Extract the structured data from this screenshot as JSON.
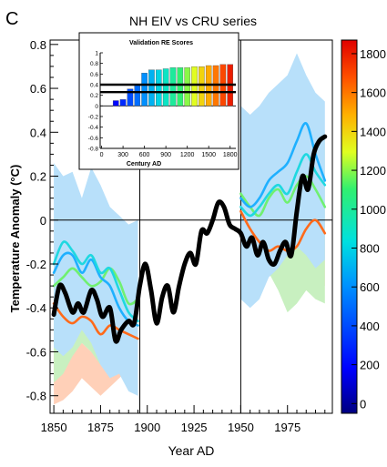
{
  "panel_letter": "C",
  "chart_data": {
    "type": "line",
    "title": "NH EIV vs CRU series",
    "xlabel": "Year AD",
    "ylabel": "Temperature Anomaly (°C)",
    "xlim": [
      1848,
      1999
    ],
    "ylim": [
      -0.88,
      0.82
    ],
    "x_ticks": [
      1850,
      1875,
      1900,
      1925,
      1950,
      1975
    ],
    "x_tick_labels": [
      "1850",
      "1875",
      "1900",
      "1925",
      "1950",
      "1975"
    ],
    "y_ticks": [
      -0.8,
      -0.6,
      -0.4,
      -0.2,
      0,
      0.2,
      0.4,
      0.6,
      0.8
    ],
    "y_tick_labels": [
      "-0.8",
      "-0.6",
      "-0.4",
      "-0.2",
      "0",
      "0.2",
      "0.4",
      "0.6",
      "0.8"
    ],
    "reference_lines": {
      "y": 0,
      "x": [
        1896,
        1950
      ]
    },
    "colorbar": {
      "ticks": [
        0,
        200,
        400,
        600,
        800,
        1000,
        1200,
        1400,
        1600,
        1800
      ],
      "tick_labels": [
        "0",
        "200",
        "400",
        "600",
        "800",
        "1000",
        "1200",
        "1400",
        "1600",
        "1800"
      ],
      "range": [
        -50,
        1870
      ]
    },
    "bands": [
      {
        "color": "#ffd0b8",
        "x": [
          1850,
          1855,
          1860,
          1865,
          1870,
          1875,
          1880,
          1885,
          1890,
          1895
        ],
        "upper": [
          -0.6,
          -0.56,
          -0.52,
          -0.56,
          -0.6,
          -0.58,
          -0.52,
          -0.5,
          -0.46,
          -0.42
        ],
        "lower": [
          -0.84,
          -0.82,
          -0.78,
          -0.72,
          -0.76,
          -0.8,
          -0.76,
          -0.72,
          -0.68,
          -0.62
        ]
      },
      {
        "color": "#c8f0c0",
        "x": [
          1850,
          1855,
          1860,
          1865,
          1870,
          1875,
          1880,
          1885,
          1890,
          1895
        ],
        "upper": [
          -0.2,
          -0.12,
          -0.08,
          -0.16,
          -0.2,
          -0.18,
          -0.12,
          -0.22,
          -0.3,
          -0.28
        ],
        "lower": [
          -0.74,
          -0.7,
          -0.62,
          -0.56,
          -0.6,
          -0.66,
          -0.6,
          -0.66,
          -0.72,
          -0.68
        ]
      },
      {
        "color": "#b8e0fa",
        "x": [
          1850,
          1855,
          1860,
          1865,
          1870,
          1875,
          1880,
          1885,
          1890,
          1895
        ],
        "upper": [
          0.26,
          0.2,
          0.22,
          0.1,
          0.24,
          0.16,
          0.06,
          0.02,
          -0.02,
          0.0
        ],
        "lower": [
          -0.58,
          -0.62,
          -0.58,
          -0.5,
          -0.56,
          -0.66,
          -0.72,
          -0.7,
          -0.78,
          -0.8
        ]
      },
      {
        "color": "#ffd0b8",
        "x": [
          1950,
          1955,
          1960,
          1965,
          1970,
          1975,
          1980,
          1985,
          1990,
          1995
        ],
        "upper": [
          0.0,
          -0.02,
          0.02,
          0.06,
          0.04,
          0.0,
          0.02,
          0.08,
          0.04,
          0.0
        ],
        "lower": [
          -0.28,
          -0.3,
          -0.24,
          -0.22,
          -0.26,
          -0.3,
          -0.26,
          -0.22,
          -0.26,
          -0.3
        ]
      },
      {
        "color": "#c8f0c0",
        "x": [
          1950,
          1955,
          1960,
          1965,
          1970,
          1975,
          1980,
          1985,
          1990,
          1995
        ],
        "upper": [
          0.34,
          0.3,
          0.34,
          0.42,
          0.4,
          0.36,
          0.42,
          0.46,
          0.4,
          0.38
        ],
        "lower": [
          -0.28,
          -0.3,
          -0.26,
          -0.24,
          -0.32,
          -0.42,
          -0.38,
          -0.32,
          -0.36,
          -0.38
        ]
      },
      {
        "color": "#b8e0fa",
        "x": [
          1950,
          1955,
          1960,
          1965,
          1970,
          1975,
          1980,
          1985,
          1990,
          1995
        ],
        "upper": [
          0.52,
          0.48,
          0.52,
          0.58,
          0.62,
          0.66,
          0.76,
          0.66,
          0.58,
          0.54
        ],
        "lower": [
          -0.36,
          -0.4,
          -0.36,
          -0.26,
          -0.22,
          -0.16,
          -0.12,
          -0.16,
          -0.22,
          -0.18
        ]
      }
    ],
    "series": [
      {
        "color": "#ff6a1a",
        "x": [
          1850,
          1855,
          1860,
          1865,
          1870,
          1875,
          1880,
          1885,
          1890,
          1895
        ],
        "y": [
          -0.38,
          -0.44,
          -0.47,
          -0.44,
          -0.46,
          -0.52,
          -0.48,
          -0.5,
          -0.52,
          -0.54
        ]
      },
      {
        "color": "#70f070",
        "x": [
          1850,
          1855,
          1860,
          1865,
          1870,
          1875,
          1880,
          1885,
          1890,
          1895
        ],
        "y": [
          -0.3,
          -0.26,
          -0.22,
          -0.26,
          -0.3,
          -0.28,
          -0.22,
          -0.28,
          -0.38,
          -0.36
        ]
      },
      {
        "color": "#1fb0ff",
        "x": [
          1850,
          1855,
          1860,
          1865,
          1870,
          1875,
          1880,
          1885,
          1890,
          1895
        ],
        "y": [
          -0.24,
          -0.16,
          -0.16,
          -0.24,
          -0.18,
          -0.26,
          -0.3,
          -0.4,
          -0.46,
          -0.48
        ]
      },
      {
        "color": "#1fd8e0",
        "x": [
          1850,
          1855,
          1860,
          1865,
          1870,
          1875,
          1880,
          1885,
          1890,
          1895
        ],
        "y": [
          -0.2,
          -0.1,
          -0.14,
          -0.2,
          -0.16,
          -0.24,
          -0.22,
          -0.32,
          -0.42,
          -0.46
        ]
      },
      {
        "color": "#ff6a1a",
        "x": [
          1950,
          1955,
          1960,
          1965,
          1970,
          1975,
          1980,
          1985,
          1990,
          1995
        ],
        "y": [
          0.04,
          -0.04,
          -0.1,
          -0.14,
          -0.12,
          -0.14,
          -0.12,
          -0.04,
          0.0,
          -0.06
        ]
      },
      {
        "color": "#70f070",
        "x": [
          1950,
          1955,
          1960,
          1965,
          1970,
          1975,
          1980,
          1985,
          1990,
          1995
        ],
        "y": [
          0.12,
          0.06,
          0.02,
          0.1,
          0.14,
          0.08,
          0.16,
          0.2,
          0.14,
          0.06
        ]
      },
      {
        "color": "#1fd8e0",
        "x": [
          1950,
          1955,
          1960,
          1965,
          1970,
          1975,
          1980,
          1985,
          1990,
          1995
        ],
        "y": [
          0.06,
          0.02,
          0.06,
          0.12,
          0.16,
          0.12,
          0.22,
          0.3,
          0.22,
          0.16
        ]
      },
      {
        "color": "#1fb0ff",
        "x": [
          1950,
          1955,
          1960,
          1965,
          1970,
          1975,
          1980,
          1985,
          1990,
          1995
        ],
        "y": [
          0.1,
          0.06,
          0.1,
          0.18,
          0.22,
          0.26,
          0.36,
          0.44,
          0.3,
          0.18
        ]
      },
      {
        "color": "#000000",
        "x": [
          1850,
          1853,
          1856,
          1860,
          1863,
          1866,
          1870,
          1873,
          1876,
          1880,
          1883,
          1886,
          1890,
          1893,
          1896,
          1899,
          1902,
          1905,
          1908,
          1911,
          1914,
          1917,
          1920,
          1923,
          1926,
          1929,
          1932,
          1935,
          1938,
          1941,
          1944,
          1947,
          1950,
          1953,
          1956,
          1959,
          1962,
          1965,
          1968,
          1971,
          1974,
          1977,
          1980,
          1983,
          1986,
          1989,
          1992,
          1995
        ],
        "y": [
          -0.43,
          -0.3,
          -0.33,
          -0.42,
          -0.38,
          -0.42,
          -0.32,
          -0.36,
          -0.44,
          -0.4,
          -0.55,
          -0.5,
          -0.46,
          -0.47,
          -0.3,
          -0.2,
          -0.32,
          -0.47,
          -0.35,
          -0.3,
          -0.42,
          -0.3,
          -0.2,
          -0.15,
          -0.2,
          -0.05,
          -0.06,
          0.0,
          0.08,
          0.06,
          -0.02,
          -0.04,
          -0.06,
          -0.12,
          -0.08,
          -0.16,
          -0.1,
          -0.18,
          -0.2,
          -0.14,
          -0.1,
          -0.16,
          0.04,
          0.2,
          0.14,
          0.3,
          0.36,
          0.38
        ]
      }
    ],
    "inset": {
      "type": "bar",
      "title": "Validation RE Scores",
      "xlabel": "Century AD",
      "x_ticks": [
        0,
        300,
        600,
        900,
        1200,
        1500,
        1800
      ],
      "x_tick_labels": [
        "0",
        "300",
        "600",
        "900",
        "1200",
        "1500",
        "1800"
      ],
      "y_ticks": [
        -0.8,
        -0.6,
        -0.4,
        -0.2,
        0,
        0.2,
        0.4,
        0.6,
        0.8,
        1
      ],
      "y_tick_labels": [
        "-0.8",
        "-0.6",
        "-0.4",
        "-0.2",
        "0",
        "0.2",
        "0.4",
        "0.6",
        "0.8",
        "1"
      ],
      "xlim": [
        -20,
        1880
      ],
      "ylim": [
        -0.8,
        1.0
      ],
      "reference_lines": [
        0.4,
        0.26
      ],
      "categories": [
        200,
        300,
        400,
        500,
        600,
        700,
        800,
        900,
        1000,
        1100,
        1200,
        1300,
        1400,
        1500,
        1600,
        1700,
        1800
      ],
      "values": [
        0.1,
        0.12,
        0.32,
        0.4,
        0.62,
        0.68,
        0.68,
        0.7,
        0.72,
        0.72,
        0.72,
        0.74,
        0.74,
        0.76,
        0.76,
        0.78,
        0.78
      ]
    }
  }
}
